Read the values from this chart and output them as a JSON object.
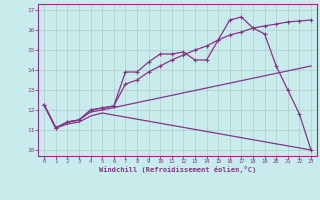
{
  "xlabel": "Windchill (Refroidissement éolien,°C)",
  "bg_color": "#c8ecec",
  "grid_color": "#b0cccc",
  "line_color": "#883388",
  "xlim": [
    -0.5,
    23.5
  ],
  "ylim": [
    9.7,
    17.3
  ],
  "xticks": [
    0,
    1,
    2,
    3,
    4,
    5,
    6,
    7,
    8,
    9,
    10,
    11,
    12,
    13,
    14,
    15,
    16,
    17,
    18,
    19,
    20,
    21,
    22,
    23
  ],
  "yticks": [
    10,
    11,
    12,
    13,
    14,
    15,
    16,
    17
  ],
  "line1_x": [
    0,
    1,
    2,
    3,
    4,
    5,
    6,
    7,
    8,
    9,
    10,
    11,
    12,
    13,
    14,
    15,
    16,
    17,
    18,
    19,
    20,
    21,
    22,
    23
  ],
  "line1_y": [
    12.25,
    11.1,
    11.4,
    11.5,
    12.0,
    12.1,
    12.2,
    13.9,
    13.9,
    14.4,
    14.8,
    14.8,
    14.9,
    14.5,
    14.5,
    15.5,
    16.5,
    16.65,
    16.1,
    15.8,
    14.2,
    13.0,
    11.8,
    10.0
  ],
  "line2_x": [
    0,
    1,
    2,
    3,
    4,
    5,
    6,
    7,
    8,
    9,
    10,
    11,
    12,
    13,
    14,
    15,
    16,
    17,
    18,
    19,
    20,
    21,
    22,
    23
  ],
  "line2_y": [
    12.25,
    11.1,
    11.4,
    11.5,
    12.0,
    12.1,
    12.2,
    13.3,
    13.5,
    13.9,
    14.2,
    14.5,
    14.75,
    15.0,
    15.2,
    15.5,
    15.75,
    15.9,
    16.1,
    16.2,
    16.3,
    16.4,
    16.45,
    16.5
  ],
  "line3_x": [
    0,
    1,
    2,
    3,
    4,
    5,
    23
  ],
  "line3_y": [
    12.25,
    11.1,
    11.4,
    11.5,
    11.9,
    12.0,
    14.2
  ],
  "line4_x": [
    0,
    1,
    2,
    3,
    4,
    5,
    23
  ],
  "line4_y": [
    12.25,
    11.1,
    11.3,
    11.4,
    11.7,
    11.85,
    10.0
  ]
}
